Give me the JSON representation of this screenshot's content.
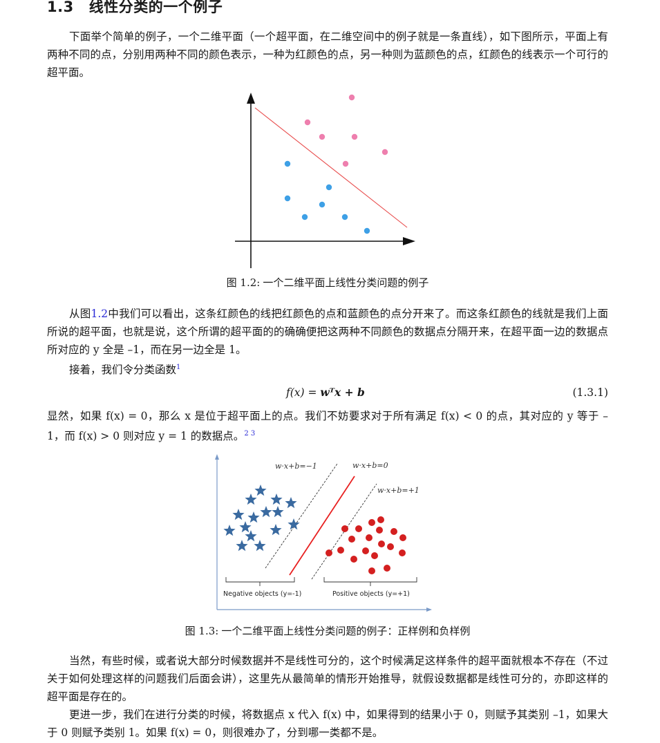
{
  "section": {
    "number": "1.3",
    "title": "线性分类的一个例子"
  },
  "para1": "下面举个简单的例子，一个二维平面（一个超平面，在二维空间中的例子就是一条直线），如下图所示，平面上有两种不同的点，分别用两种不同的颜色表示，一种为红颜色的点，另一种则为蓝颜色的点，红颜色的线表示一个可行的超平面。",
  "figure1": {
    "caption_label": "图 1.2:",
    "caption_text": "一个二维平面上线性分类问题的例子",
    "colors": {
      "pink": "#ee7fae",
      "blue": "#3ea0e6",
      "line": "#e84a4a"
    }
  },
  "para2": {
    "before_ref": "从图",
    "ref": "1.2",
    "after_ref": "中我们可以看出，这条红颜色的线把红颜色的点和蓝颜色的点分开来了。而这条红颜色的线就是我们上面所说的超平面，也就是说，这个所谓的超平面的的确确便把这两种不同颜色的数据点分隔开来，在超平面一边的数据点所对应的 y 全是 –1，而在另一边全是 1。"
  },
  "para3": {
    "text": "接着，我们令分类函数",
    "footnote": "1"
  },
  "equation": {
    "lhs": "f(x) = ",
    "rhs": "wᵀx + b",
    "number": "(1.3.1)"
  },
  "para4": {
    "text": "显然，如果 f(x) = 0，那么 x 是位于超平面上的点。我们不妨要求对于所有满足 f(x) < 0 的点，其对应的 y 等于 –1，而 f(x) > 0 则对应 y = 1 的数据点。",
    "footnotes": "2 3"
  },
  "figure2": {
    "label_neg_margin": "w·x+b=−1",
    "label_hyperplane": "w·x+b=0",
    "label_pos_margin": "w·x+b=+1",
    "neg_group": "Negative objects (y=-1)",
    "pos_group": "Positive objects (y=+1)",
    "caption_label": "图 1.3:",
    "caption_text": "一个二维平面上线性分类问题的例子：正样例和负样例",
    "colors": {
      "star": "#3a6aa0",
      "dot": "#d42020",
      "line": "#e82020",
      "axis": "#7a9ac8"
    }
  },
  "para5": "当然，有些时候，或者说大部分时候数据并不是线性可分的，这个时候满足这样条件的超平面就根本不存在（不过关于如何处理这样的问题我们后面会讲），这里先从最简单的情形开始推导，就假设数据都是线性可分的，亦即这样的超平面是存在的。",
  "para6": "更进一步，我们在进行分类的时候，将数据点 x 代入 f(x) 中，如果得到的结果小于 0，则赋予其类别 –1，如果大于 0 则赋予类别 1。如果 f(x) = 0，则很难办了，分到哪一类都不是。"
}
